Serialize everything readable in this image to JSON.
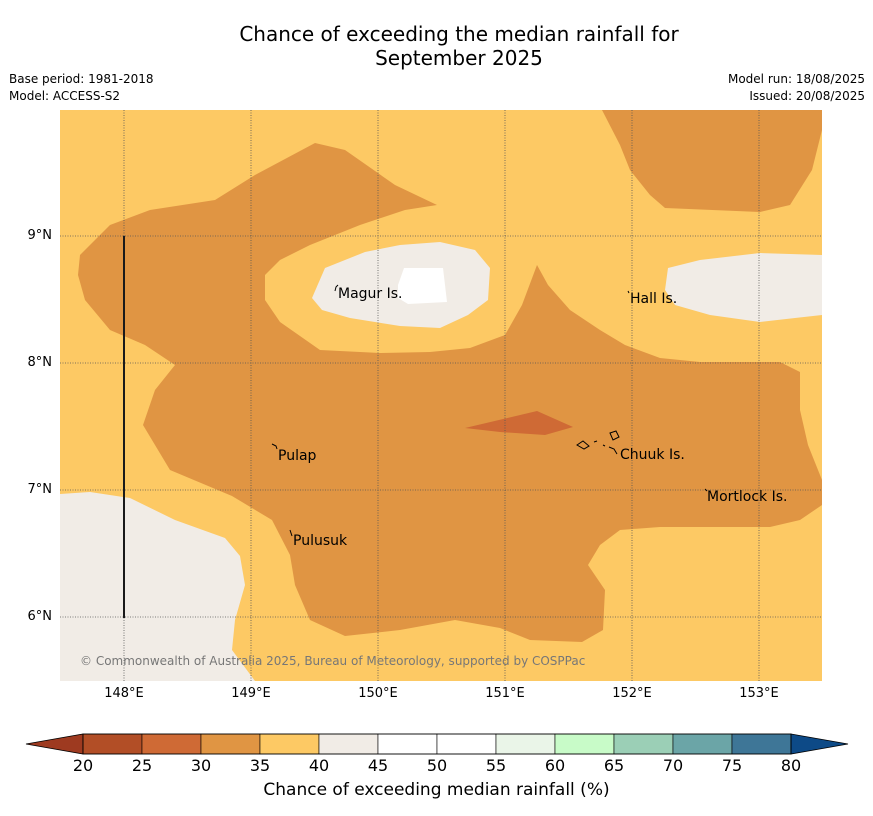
{
  "title_line1": "Chance of exceeding the median rainfall for",
  "title_line2": "September 2025",
  "meta_left": [
    "Base period: 1981-2018",
    "Model: ACCESS-S2"
  ],
  "meta_right": [
    "Model run: 18/08/2025",
    "Issued: 20/08/2025"
  ],
  "copyright": "© Commonwealth of Australia 2025, Bureau of Meteorology, supported by COSPPac",
  "x_ticks": [
    "148°E",
    "149°E",
    "150°E",
    "151°E",
    "152°E",
    "153°E"
  ],
  "y_ticks": [
    "9°N",
    "8°N",
    "7°N",
    "6°N"
  ],
  "places": [
    {
      "name": "Magur Is."
    },
    {
      "name": "Hall Is."
    },
    {
      "name": "Pulap"
    },
    {
      "name": "Chuuk Is."
    },
    {
      "name": "Mortlock Is."
    },
    {
      "name": "Pulusuk"
    }
  ],
  "colorbar": {
    "label": "Chance of exceeding median rainfall (%)",
    "ticks": [
      "20",
      "25",
      "30",
      "35",
      "40",
      "45",
      "50",
      "55",
      "60",
      "65",
      "70",
      "75",
      "80"
    ],
    "colors": [
      "#b24e26",
      "#cf6a35",
      "#e09543",
      "#fdc964",
      "#f1ece6",
      "#ffffff",
      "#ffffff",
      "#eaf5e8",
      "#c8fbc8",
      "#9bcfb6",
      "#6ba5a7",
      "#3e7697"
    ],
    "under_color": "#9e3a20",
    "over_color": "#0d4a87"
  }
}
